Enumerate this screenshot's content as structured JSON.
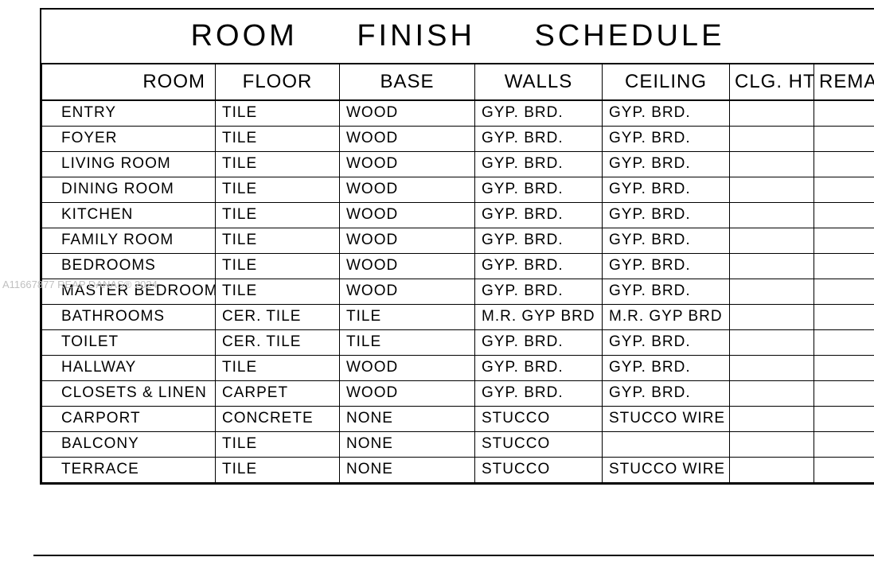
{
  "title": {
    "word1": "ROOM",
    "word2": "FINISH",
    "word3": "SCHEDULE"
  },
  "watermark": "A11667877 REAP DANAS® 2024",
  "columns": {
    "room": "ROOM",
    "floor": "FLOOR",
    "base": "BASE",
    "walls": "WALLS",
    "ceiling": "CEILING",
    "clght": "CLG. HT.",
    "remarks": "REMAR"
  },
  "rows": [
    {
      "room": "ENTRY",
      "floor": "TILE",
      "base": "WOOD",
      "walls": "GYP. BRD.",
      "ceiling": "GYP. BRD.",
      "clght": "",
      "remarks": ""
    },
    {
      "room": "FOYER",
      "floor": "TILE",
      "base": "WOOD",
      "walls": "GYP. BRD.",
      "ceiling": "GYP. BRD.",
      "clght": "",
      "remarks": ""
    },
    {
      "room": "LIVING ROOM",
      "floor": "TILE",
      "base": "WOOD",
      "walls": "GYP. BRD.",
      "ceiling": "GYP. BRD.",
      "clght": "",
      "remarks": ""
    },
    {
      "room": "DINING ROOM",
      "floor": "TILE",
      "base": "WOOD",
      "walls": "GYP. BRD.",
      "ceiling": "GYP. BRD.",
      "clght": "",
      "remarks": ""
    },
    {
      "room": "KITCHEN",
      "floor": "TILE",
      "base": "WOOD",
      "walls": "GYP. BRD.",
      "ceiling": "GYP. BRD.",
      "clght": "",
      "remarks": ""
    },
    {
      "room": "FAMILY ROOM",
      "floor": "TILE",
      "base": "WOOD",
      "walls": "GYP. BRD.",
      "ceiling": "GYP. BRD.",
      "clght": "",
      "remarks": ""
    },
    {
      "room": "BEDROOMS",
      "floor": "TILE",
      "base": "WOOD",
      "walls": "GYP. BRD.",
      "ceiling": "GYP. BRD.",
      "clght": "",
      "remarks": ""
    },
    {
      "room": "MASTER BEDROOM",
      "floor": "TILE",
      "base": "WOOD",
      "walls": "GYP. BRD.",
      "ceiling": "GYP. BRD.",
      "clght": "",
      "remarks": ""
    },
    {
      "room": "BATHROOMS",
      "floor": "CER. TILE",
      "base": "TILE",
      "walls": "M.R. GYP BRD",
      "ceiling": "M.R. GYP BRD",
      "clght": "",
      "remarks": ""
    },
    {
      "room": "TOILET",
      "floor": "CER. TILE",
      "base": "TILE",
      "walls": "GYP. BRD.",
      "ceiling": "GYP. BRD.",
      "clght": "",
      "remarks": ""
    },
    {
      "room": "HALLWAY",
      "floor": "TILE",
      "base": "WOOD",
      "walls": "GYP. BRD.",
      "ceiling": "GYP. BRD.",
      "clght": "",
      "remarks": ""
    },
    {
      "room": "CLOSETS & LINEN",
      "floor": "CARPET",
      "base": "WOOD",
      "walls": "GYP. BRD.",
      "ceiling": "GYP. BRD.",
      "clght": "",
      "remarks": ""
    },
    {
      "room": "CARPORT",
      "floor": "CONCRETE",
      "base": "NONE",
      "walls": "STUCCO",
      "ceiling": "STUCCO WIRE LT",
      "clght": "",
      "remarks": ""
    },
    {
      "room": "BALCONY",
      "floor": "TILE",
      "base": "NONE",
      "walls": "STUCCO",
      "ceiling": "",
      "clght": "",
      "remarks": ""
    },
    {
      "room": "TERRACE",
      "floor": "TILE",
      "base": "NONE",
      "walls": "STUCCO",
      "ceiling": "STUCCO WIRE LT",
      "clght": "",
      "remarks": ""
    }
  ],
  "styling": {
    "border_color": "#000000",
    "background_color": "#ffffff",
    "watermark_color": "#c0c0c0",
    "title_fontsize": 38,
    "header_fontsize": 24,
    "cell_fontsize": 19,
    "col_widths": {
      "room": 218,
      "floor": 156,
      "base": 170,
      "walls": 160,
      "ceiling": 160,
      "clght": 106,
      "remarks": 78
    }
  }
}
